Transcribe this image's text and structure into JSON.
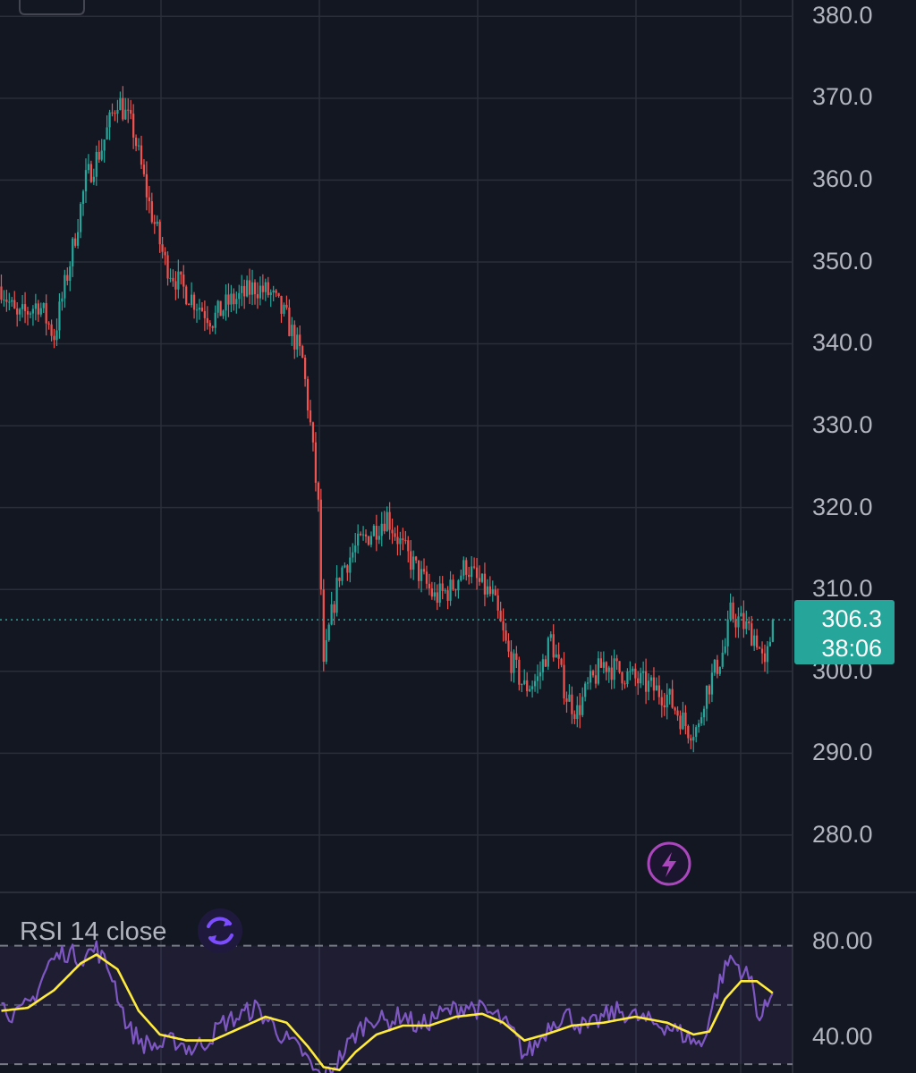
{
  "colors": {
    "background": "#131722",
    "grid": "#2a2e39",
    "up": "#26a69a",
    "down": "#ef5350",
    "last_price_line": "#26a69a",
    "rsi_line": "#7e57c2",
    "rsi_ma": "#ffeb3b",
    "rsi_band": "#7e57c2",
    "lightning": "#ab47bc"
  },
  "icons": {
    "lightning": "lightning-icon",
    "rsi_refresh": "refresh-icon"
  },
  "price_axis": {
    "labels": [
      "380.0",
      "370.0",
      "360.0",
      "350.0",
      "340.0",
      "330.0",
      "320.0",
      "310.0",
      "300.0",
      "290.0",
      "280.0"
    ]
  },
  "last_price": {
    "price": "306.3",
    "countdown": "38:06"
  },
  "rsi": {
    "title": "RSI 14 close",
    "axis_labels": [
      "80.00",
      "40.00"
    ],
    "upper_band": 70,
    "lower_band": 30
  },
  "chart_data": {
    "type": "candlestick",
    "ylim": [
      273,
      382
    ],
    "grid": true,
    "last_price": 306.3,
    "trend": [
      [
        0,
        347
      ],
      [
        6,
        343
      ],
      [
        14,
        345
      ],
      [
        20,
        341
      ],
      [
        26,
        350
      ],
      [
        32,
        360
      ],
      [
        38,
        364
      ],
      [
        44,
        370
      ],
      [
        50,
        366
      ],
      [
        56,
        357
      ],
      [
        62,
        350
      ],
      [
        68,
        347
      ],
      [
        74,
        345
      ],
      [
        80,
        343
      ],
      [
        86,
        345
      ],
      [
        92,
        346
      ],
      [
        96,
        347
      ],
      [
        102,
        346
      ],
      [
        108,
        343
      ],
      [
        114,
        338
      ],
      [
        117,
        330
      ],
      [
        120,
        320
      ],
      [
        122,
        300
      ],
      [
        124,
        305
      ],
      [
        128,
        312
      ],
      [
        134,
        315
      ],
      [
        140,
        317
      ],
      [
        146,
        319
      ],
      [
        152,
        315
      ],
      [
        158,
        312
      ],
      [
        164,
        309
      ],
      [
        170,
        310
      ],
      [
        176,
        313
      ],
      [
        180,
        311
      ],
      [
        186,
        309
      ],
      [
        192,
        302
      ],
      [
        198,
        298
      ],
      [
        203,
        299
      ],
      [
        208,
        304
      ],
      [
        214,
        297
      ],
      [
        218,
        295
      ],
      [
        222,
        298
      ],
      [
        228,
        301
      ],
      [
        234,
        300
      ],
      [
        240,
        299
      ],
      [
        246,
        298
      ],
      [
        252,
        297
      ],
      [
        256,
        295
      ],
      [
        260,
        293
      ],
      [
        264,
        293
      ],
      [
        266,
        297
      ],
      [
        270,
        300
      ],
      [
        274,
        303
      ],
      [
        276,
        307
      ],
      [
        280,
        306
      ],
      [
        286,
        304
      ],
      [
        289,
        300
      ],
      [
        292,
        306
      ]
    ]
  },
  "rsi_data": {
    "ylim": [
      27,
      88
    ],
    "rsi": [
      [
        0,
        50
      ],
      [
        6,
        46
      ],
      [
        12,
        52
      ],
      [
        18,
        64
      ],
      [
        24,
        68
      ],
      [
        30,
        66
      ],
      [
        36,
        69
      ],
      [
        42,
        60
      ],
      [
        48,
        42
      ],
      [
        54,
        37
      ],
      [
        60,
        36
      ],
      [
        66,
        38
      ],
      [
        72,
        35
      ],
      [
        78,
        38
      ],
      [
        84,
        44
      ],
      [
        90,
        46
      ],
      [
        96,
        49
      ],
      [
        102,
        44
      ],
      [
        108,
        38
      ],
      [
        114,
        34
      ],
      [
        118,
        28
      ],
      [
        122,
        25
      ],
      [
        128,
        32
      ],
      [
        134,
        40
      ],
      [
        140,
        46
      ],
      [
        146,
        44
      ],
      [
        152,
        47
      ],
      [
        158,
        42
      ],
      [
        164,
        46
      ],
      [
        170,
        48
      ],
      [
        176,
        50
      ],
      [
        182,
        48
      ],
      [
        188,
        46
      ],
      [
        194,
        40
      ],
      [
        198,
        33
      ],
      [
        203,
        37
      ],
      [
        208,
        44
      ],
      [
        214,
        47
      ],
      [
        218,
        44
      ],
      [
        222,
        42
      ],
      [
        228,
        46
      ],
      [
        234,
        48
      ],
      [
        240,
        46
      ],
      [
        246,
        44
      ],
      [
        252,
        43
      ],
      [
        258,
        40
      ],
      [
        262,
        38
      ],
      [
        265,
        36
      ],
      [
        268,
        46
      ],
      [
        272,
        58
      ],
      [
        276,
        66
      ],
      [
        280,
        62
      ],
      [
        284,
        58
      ],
      [
        287,
        45
      ],
      [
        290,
        50
      ],
      [
        292,
        56
      ]
    ],
    "ma": [
      [
        0,
        48
      ],
      [
        10,
        49
      ],
      [
        20,
        55
      ],
      [
        30,
        64
      ],
      [
        36,
        67
      ],
      [
        44,
        62
      ],
      [
        52,
        48
      ],
      [
        60,
        40
      ],
      [
        70,
        38
      ],
      [
        80,
        38
      ],
      [
        90,
        42
      ],
      [
        100,
        46
      ],
      [
        108,
        44
      ],
      [
        116,
        36
      ],
      [
        122,
        29
      ],
      [
        128,
        28
      ],
      [
        134,
        34
      ],
      [
        142,
        40
      ],
      [
        152,
        43
      ],
      [
        162,
        43
      ],
      [
        172,
        46
      ],
      [
        182,
        47
      ],
      [
        190,
        44
      ],
      [
        198,
        38
      ],
      [
        206,
        40
      ],
      [
        216,
        43
      ],
      [
        228,
        44
      ],
      [
        240,
        46
      ],
      [
        252,
        44
      ],
      [
        262,
        40
      ],
      [
        268,
        41
      ],
      [
        274,
        52
      ],
      [
        280,
        58
      ],
      [
        286,
        58
      ],
      [
        292,
        54
      ]
    ]
  }
}
